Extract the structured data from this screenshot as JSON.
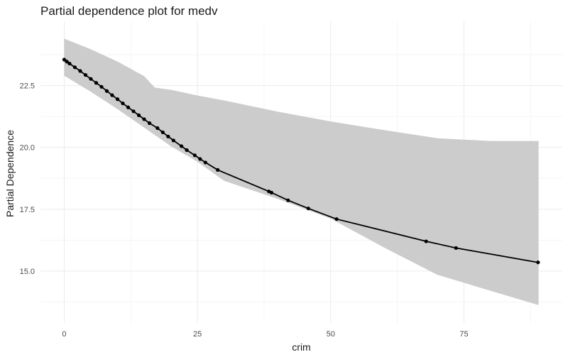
{
  "chart_data": {
    "type": "line",
    "title": "Partial dependence plot for medv",
    "xlabel": "crim",
    "ylabel": "Partial Dependence",
    "xlim": [
      -4.45,
      93.45
    ],
    "ylim": [
      12.9,
      25.1
    ],
    "x_ticks": [
      0,
      25,
      50,
      75
    ],
    "x_tick_labels": [
      "0",
      "25",
      "50",
      "75"
    ],
    "y_ticks": [
      15.0,
      17.5,
      20.0,
      22.5
    ],
    "y_tick_labels": [
      "15.0",
      "17.5",
      "20.0",
      "22.5"
    ],
    "grid": true,
    "colors": {
      "line": "#000000",
      "band": "#cccccc",
      "grid": "#ebebeb"
    },
    "series": [
      {
        "x": [
          0,
          0.5,
          1,
          2,
          3,
          4,
          5,
          6,
          7,
          8,
          9,
          10,
          11,
          12,
          13,
          14,
          15,
          16,
          17.5,
          18.5,
          19.5,
          20.5,
          22,
          23,
          24.5,
          25.5,
          26.5,
          28.8,
          38.4,
          38.9,
          42,
          45.8,
          51.1,
          67.9,
          73.5,
          88.9
        ],
        "y": [
          23.55,
          23.47,
          23.39,
          23.24,
          23.09,
          22.93,
          22.77,
          22.61,
          22.45,
          22.28,
          22.11,
          21.95,
          21.78,
          21.62,
          21.46,
          21.3,
          21.14,
          20.98,
          20.78,
          20.61,
          20.44,
          20.28,
          20.05,
          19.89,
          19.68,
          19.53,
          19.39,
          19.09,
          18.22,
          18.17,
          17.86,
          17.53,
          17.1,
          16.2,
          15.93,
          15.35
        ]
      }
    ],
    "confidence_band": {
      "x": [
        0,
        5,
        10,
        15,
        17,
        20,
        25,
        30,
        40,
        50,
        60,
        70,
        80,
        89
      ],
      "upper": [
        24.4,
        23.97,
        23.47,
        22.88,
        22.42,
        22.33,
        22.1,
        21.9,
        21.45,
        21.05,
        20.7,
        20.37,
        20.26,
        20.26
      ],
      "lower": [
        22.9,
        22.25,
        21.55,
        20.8,
        20.5,
        20.05,
        19.42,
        18.65,
        17.92,
        17.12,
        15.95,
        14.85,
        14.2,
        13.62
      ]
    }
  }
}
